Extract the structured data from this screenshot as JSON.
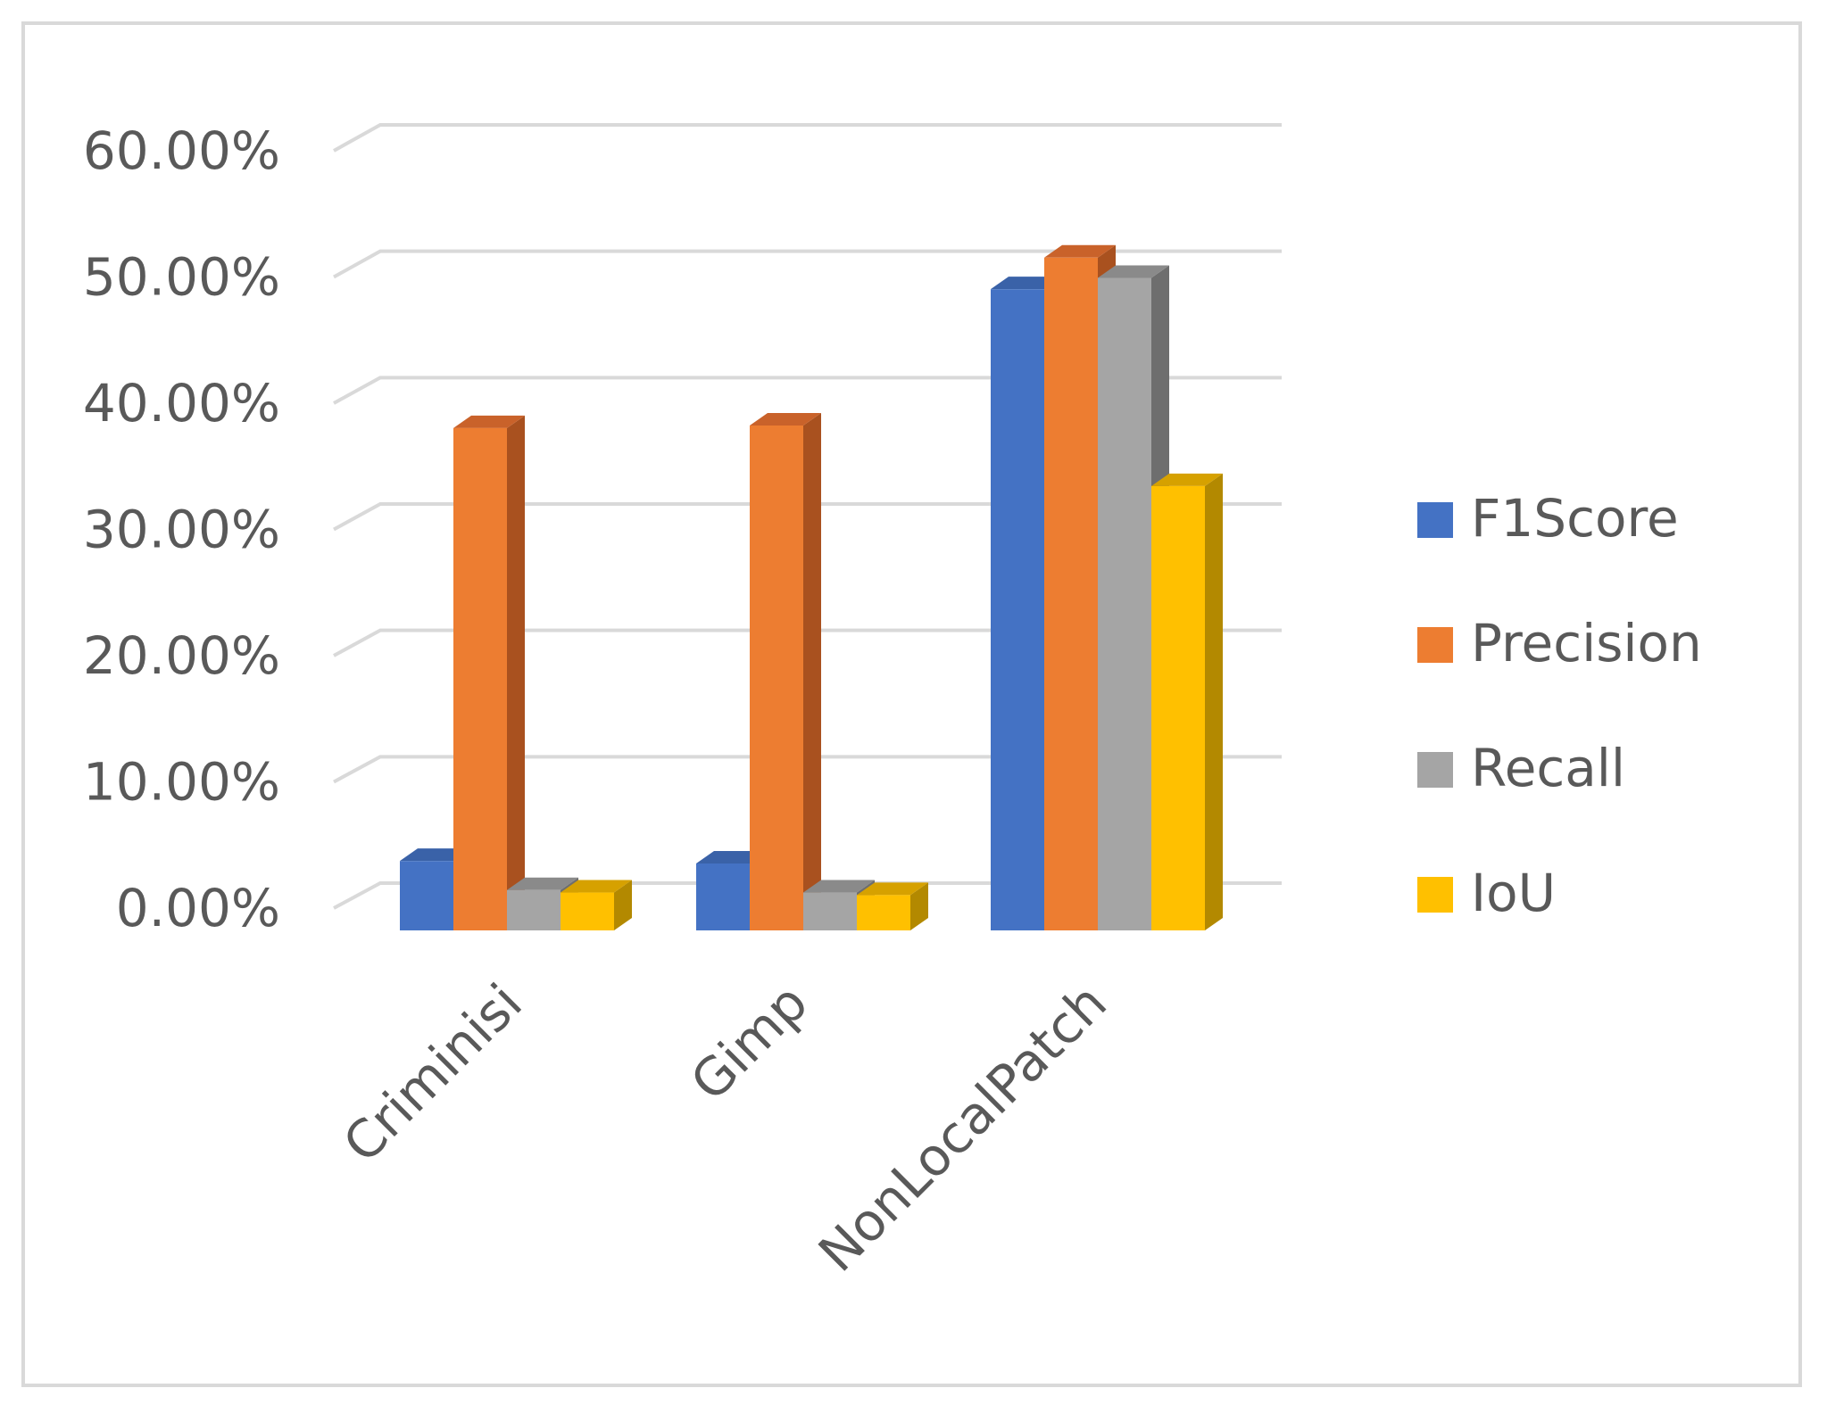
{
  "chart_data": {
    "type": "bar",
    "style": "3d-clustered-column",
    "title": "",
    "xlabel": "",
    "ylabel": "",
    "categories": [
      "Criminisi",
      "Gimp",
      "NonLocalPatch"
    ],
    "series": [
      {
        "name": "F1Score",
        "values": [
          5.5,
          5.3,
          50.8
        ],
        "color": "#4472C4",
        "side_color": "#2F5597",
        "top_color": "#3A62A8"
      },
      {
        "name": "Precision",
        "values": [
          39.8,
          40.0,
          53.3
        ],
        "color": "#ED7D31",
        "side_color": "#A9511F",
        "top_color": "#C9622A"
      },
      {
        "name": "Recall",
        "values": [
          3.2,
          3.0,
          51.7
        ],
        "color": "#A5A5A5",
        "side_color": "#6E6E6E",
        "top_color": "#8A8A8A"
      },
      {
        "name": "IoU",
        "values": [
          3.0,
          2.8,
          35.2
        ],
        "color": "#FFC000",
        "side_color": "#B38900",
        "top_color": "#D6A100"
      }
    ],
    "ylim": [
      0,
      60
    ],
    "yticks": [
      0,
      10,
      20,
      30,
      40,
      50,
      60
    ],
    "ytick_labels": [
      "0.00%",
      "10.00%",
      "20.00%",
      "30.00%",
      "40.00%",
      "50.00%",
      "60.00%"
    ],
    "grid": true,
    "legend_position": "right",
    "gridline_color": "#d9d9d9"
  }
}
